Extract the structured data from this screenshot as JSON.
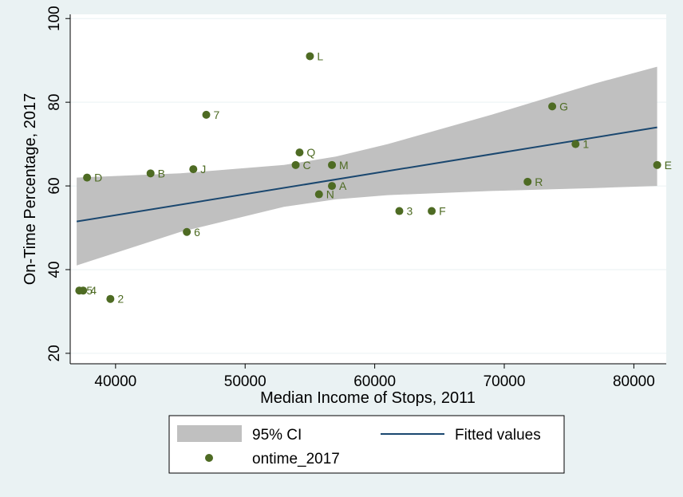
{
  "chart_data": {
    "type": "scatter",
    "xlabel": "Median Income of Stops, 2011",
    "ylabel": "On-Time Percentage, 2017",
    "xlim": [
      36500,
      82500
    ],
    "ylim": [
      17.5,
      101
    ],
    "x_ticks": [
      40000,
      50000,
      60000,
      70000,
      80000
    ],
    "y_ticks": [
      20,
      40,
      60,
      80,
      100
    ],
    "grid": true,
    "legend_position": "bottom",
    "legend": {
      "ci": "95% CI",
      "fit": "Fitted values",
      "points": "ontime_2017"
    },
    "colors": {
      "background": "#eaf2f3",
      "plot": "#ffffff",
      "ci": "#c0c0c0",
      "fit": "#1a476f",
      "marker": "#4e6b23",
      "grid": "#eaf2f3"
    },
    "fit": {
      "x": [
        37000,
        81800
      ],
      "y": [
        51.5,
        74.0
      ]
    },
    "ci": {
      "x": [
        37000,
        45000,
        53000,
        57000,
        61000,
        69000,
        77000,
        81800
      ],
      "lower": [
        41.0,
        49.0,
        55.0,
        56.8,
        57.8,
        58.8,
        59.5,
        60.0
      ],
      "upper": [
        62.0,
        63.0,
        65.0,
        67.0,
        70.0,
        77.0,
        84.5,
        88.5
      ]
    },
    "series": [
      {
        "name": "ontime_2017",
        "points": [
          {
            "label": "L",
            "x": 55000,
            "y": 91
          },
          {
            "label": "G",
            "x": 73700,
            "y": 79
          },
          {
            "label": "7",
            "x": 47000,
            "y": 77
          },
          {
            "label": "1",
            "x": 75500,
            "y": 70
          },
          {
            "label": "Q",
            "x": 54200,
            "y": 68
          },
          {
            "label": "C",
            "x": 53900,
            "y": 65
          },
          {
            "label": "M",
            "x": 56700,
            "y": 65
          },
          {
            "label": "E",
            "x": 81800,
            "y": 65
          },
          {
            "label": "J",
            "x": 46000,
            "y": 64
          },
          {
            "label": "B",
            "x": 42700,
            "y": 63
          },
          {
            "label": "D",
            "x": 37800,
            "y": 62
          },
          {
            "label": "R",
            "x": 71800,
            "y": 61
          },
          {
            "label": "A",
            "x": 56700,
            "y": 60
          },
          {
            "label": "N",
            "x": 55700,
            "y": 58
          },
          {
            "label": "3",
            "x": 61900,
            "y": 54
          },
          {
            "label": "F",
            "x": 64400,
            "y": 54
          },
          {
            "label": "6",
            "x": 45500,
            "y": 49
          },
          {
            "label": "5",
            "x": 37200,
            "y": 35
          },
          {
            "label": "4",
            "x": 37500,
            "y": 35
          },
          {
            "label": "2",
            "x": 39600,
            "y": 33
          }
        ]
      }
    ]
  }
}
